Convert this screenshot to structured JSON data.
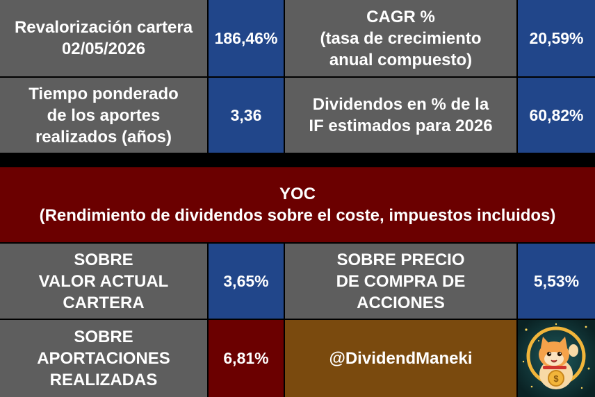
{
  "top_table": {
    "row1": {
      "label_left": "Revalorización cartera\n02/05/2026",
      "value_left": "186,46%",
      "label_right": "CAGR %\n(tasa de crecimiento\nanual compuesto)",
      "value_right": "20,59%"
    },
    "row2": {
      "label_left": "Tiempo ponderado\nde los aportes\nrealizados (años)",
      "value_left": "3,36",
      "label_right": "Dividendos en % de la\nIF estimados para 2026",
      "value_right": "60,82%"
    }
  },
  "yoc": {
    "header": "YOC\n(Rendimiento de dividendos sobre el coste, impuestos incluidos)",
    "row1": {
      "label_left": "SOBRE\nVALOR ACTUAL\nCARTERA",
      "value_left": "3,65%",
      "label_right": "SOBRE PRECIO\nDE COMPRA DE\nACCIONES",
      "value_right": "5,53%"
    },
    "row2": {
      "label_left": "SOBRE\nAPORTACIONES\nREALIZADAS",
      "value_left": "6,81%",
      "handle": "@DividendManeki"
    }
  },
  "colors": {
    "label_bg": "#5e5e5e",
    "value_bg": "#21468a",
    "header_bg": "#6b0000",
    "handle_bg": "#7a4a0e"
  },
  "logo_icon": "maneki-neko-cat-logo"
}
